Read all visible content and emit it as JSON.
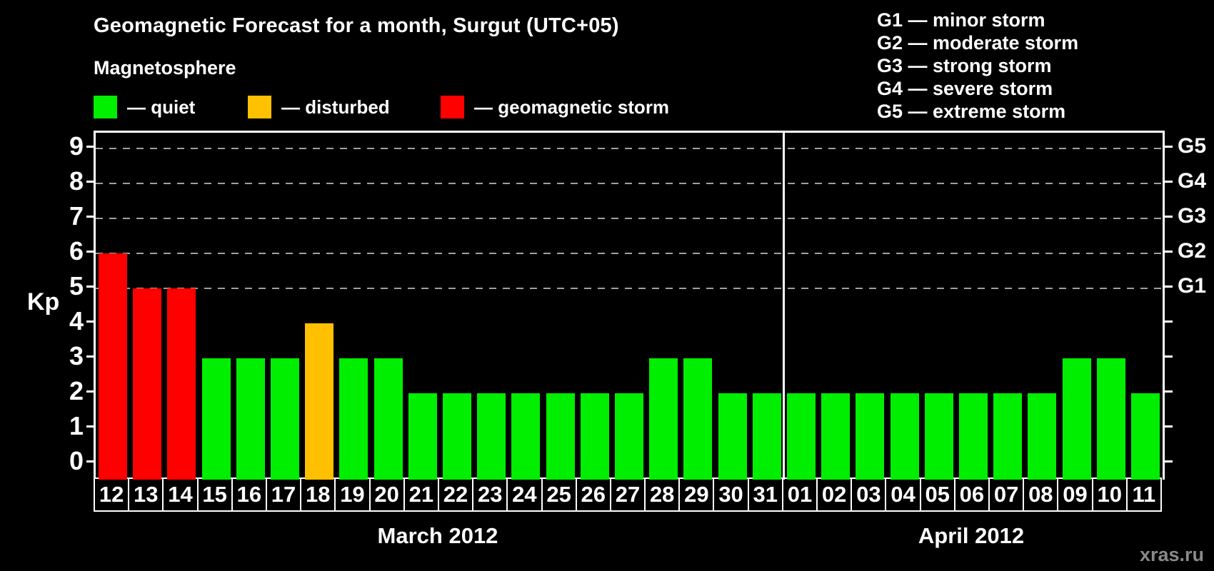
{
  "title": "Geomagnetic Forecast for a month, Surgut (UTC+05)",
  "legend": {
    "heading": "Magnetosphere",
    "items": [
      {
        "key": "quiet",
        "label": "— quiet",
        "color": "#00ee00"
      },
      {
        "key": "disturbed",
        "label": "— disturbed",
        "color": "#ffc000"
      },
      {
        "key": "storm",
        "label": "— geomagnetic storm",
        "color": "#ff0000"
      }
    ]
  },
  "g_legend": [
    "G1 — minor storm",
    "G2 — moderate storm",
    "G3 — strong storm",
    "G4 — severe storm",
    "G5 — extreme storm"
  ],
  "watermark": "xras.ru",
  "colors": {
    "background": "#000000",
    "text": "#ffffff",
    "axis": "#ffffff",
    "gridline": "#a0a0a0",
    "quiet": "#00ee00",
    "disturbed": "#ffc000",
    "storm": "#ff0000",
    "watermark": "#8a8a8a"
  },
  "chart_data": {
    "type": "bar",
    "ylabel": "Kp",
    "ylim": [
      0,
      9
    ],
    "y_ticks": [
      0,
      1,
      2,
      3,
      4,
      5,
      6,
      7,
      8,
      9
    ],
    "gridlines_at": [
      5,
      6,
      7,
      8,
      9
    ],
    "grid_style": "dashed",
    "right_axis_labels": [
      {
        "label": "G1",
        "kp": 5
      },
      {
        "label": "G2",
        "kp": 6
      },
      {
        "label": "G3",
        "kp": 7
      },
      {
        "label": "G4",
        "kp": 8
      },
      {
        "label": "G5",
        "kp": 9
      }
    ],
    "months": [
      {
        "label": "March 2012",
        "bars": [
          {
            "day": "12",
            "kp": 6,
            "level": "storm"
          },
          {
            "day": "13",
            "kp": 5,
            "level": "storm"
          },
          {
            "day": "14",
            "kp": 5,
            "level": "storm"
          },
          {
            "day": "15",
            "kp": 3,
            "level": "quiet"
          },
          {
            "day": "16",
            "kp": 3,
            "level": "quiet"
          },
          {
            "day": "17",
            "kp": 3,
            "level": "quiet"
          },
          {
            "day": "18",
            "kp": 4,
            "level": "disturbed"
          },
          {
            "day": "19",
            "kp": 3,
            "level": "quiet"
          },
          {
            "day": "20",
            "kp": 3,
            "level": "quiet"
          },
          {
            "day": "21",
            "kp": 2,
            "level": "quiet"
          },
          {
            "day": "22",
            "kp": 2,
            "level": "quiet"
          },
          {
            "day": "23",
            "kp": 2,
            "level": "quiet"
          },
          {
            "day": "24",
            "kp": 2,
            "level": "quiet"
          },
          {
            "day": "25",
            "kp": 2,
            "level": "quiet"
          },
          {
            "day": "26",
            "kp": 2,
            "level": "quiet"
          },
          {
            "day": "27",
            "kp": 2,
            "level": "quiet"
          },
          {
            "day": "28",
            "kp": 3,
            "level": "quiet"
          },
          {
            "day": "29",
            "kp": 3,
            "level": "quiet"
          },
          {
            "day": "30",
            "kp": 2,
            "level": "quiet"
          },
          {
            "day": "31",
            "kp": 2,
            "level": "quiet"
          }
        ]
      },
      {
        "label": "April 2012",
        "bars": [
          {
            "day": "01",
            "kp": 2,
            "level": "quiet"
          },
          {
            "day": "02",
            "kp": 2,
            "level": "quiet"
          },
          {
            "day": "03",
            "kp": 2,
            "level": "quiet"
          },
          {
            "day": "04",
            "kp": 2,
            "level": "quiet"
          },
          {
            "day": "05",
            "kp": 2,
            "level": "quiet"
          },
          {
            "day": "06",
            "kp": 2,
            "level": "quiet"
          },
          {
            "day": "07",
            "kp": 2,
            "level": "quiet"
          },
          {
            "day": "08",
            "kp": 2,
            "level": "quiet"
          },
          {
            "day": "09",
            "kp": 3,
            "level": "quiet"
          },
          {
            "day": "10",
            "kp": 3,
            "level": "quiet"
          },
          {
            "day": "11",
            "kp": 2,
            "level": "quiet"
          }
        ]
      }
    ]
  }
}
